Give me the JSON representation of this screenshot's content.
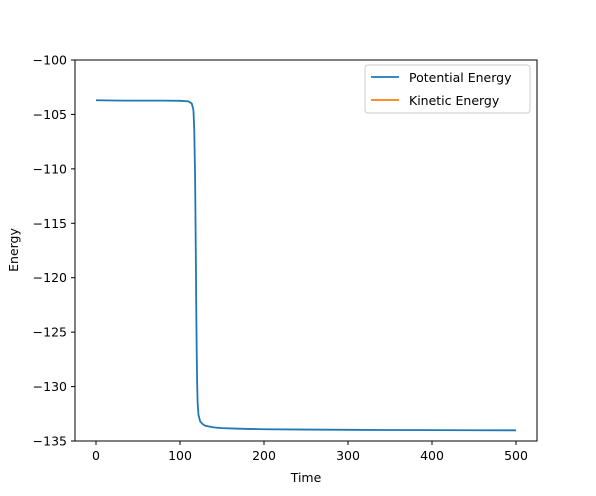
{
  "chart_data": {
    "type": "line",
    "xlabel": "Time",
    "ylabel": "Energy",
    "xlim": [
      -25,
      525
    ],
    "ylim": [
      -135,
      -100
    ],
    "xticks": [
      0,
      100,
      200,
      300,
      400,
      500
    ],
    "yticks": [
      -100,
      -105,
      -110,
      -115,
      -120,
      -125,
      -130,
      -135
    ],
    "xtick_labels": [
      "0",
      "100",
      "200",
      "300",
      "400",
      "500"
    ],
    "ytick_labels": [
      "−100",
      "−105",
      "−110",
      "−115",
      "−120",
      "−125",
      "−130",
      "−135"
    ],
    "legend_position": "top-right",
    "grid": false,
    "series": [
      {
        "name": "Potential Energy",
        "color": "#1f77b4",
        "x": [
          0,
          20,
          40,
          60,
          80,
          100,
          110,
          114,
          116,
          117,
          118,
          118.5,
          119,
          119.5,
          120,
          120.5,
          121,
          122,
          124,
          127,
          130,
          140,
          150,
          175,
          200,
          250,
          300,
          350,
          400,
          450,
          500
        ],
        "y": [
          -103.7,
          -103.72,
          -103.73,
          -103.73,
          -103.73,
          -103.75,
          -103.8,
          -104.0,
          -104.6,
          -106.5,
          -111.0,
          -115.0,
          -119.5,
          -124.0,
          -127.5,
          -130.0,
          -131.5,
          -132.6,
          -133.2,
          -133.45,
          -133.6,
          -133.75,
          -133.82,
          -133.88,
          -133.92,
          -133.95,
          -133.97,
          -133.99,
          -134.0,
          -134.01,
          -134.02
        ]
      },
      {
        "name": "Kinetic Energy",
        "color": "#ff7f0e",
        "x": [],
        "y": []
      }
    ]
  }
}
